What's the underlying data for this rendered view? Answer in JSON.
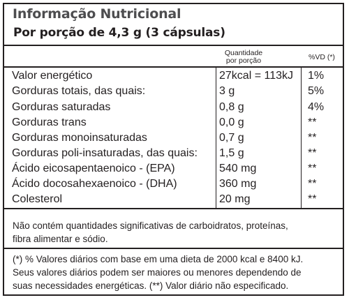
{
  "title": "Informação Nutricional",
  "subtitle": "Por porção de 4,3 g (3 cápsulas)",
  "columns": {
    "qty_line1": "Quantidade",
    "qty_line2": "por porção",
    "vd": "%VD (*)"
  },
  "rows": [
    {
      "name": "Valor energético",
      "qty": "27kcal = 113kJ",
      "vd": "1%"
    },
    {
      "name": "Gorduras totais, das quais:",
      "qty": "3 g",
      "vd": "5%"
    },
    {
      "name": "Gorduras saturadas",
      "qty": "0,8 g",
      "vd": "4%"
    },
    {
      "name": "Gorduras trans",
      "qty": "0,0 g",
      "vd": "**"
    },
    {
      "name": "Gorduras monoinsaturadas",
      "qty": "0,7 g",
      "vd": "**"
    },
    {
      "name": "Gorduras poli-insaturadas, das quais:",
      "qty": "1,5 g",
      "vd": "**"
    },
    {
      "name": "Ácido eicosapentaenoico - (EPA)",
      "qty": "540 mg",
      "vd": "**"
    },
    {
      "name": "Ácido docosahexaenoico - (DHA)",
      "qty": "360 mg",
      "vd": "**"
    },
    {
      "name": "Colesterol",
      "qty": "20 mg",
      "vd": "**"
    }
  ],
  "notes": {
    "ingredients_line1": "Não contém quantidades significativas de carboidratos, proteínas,",
    "ingredients_line2": "fibra alimentar e sódio.",
    "footnote_line1": "(*) % Valores diários com base em uma dieta de 2000 kcal e 8400 kJ.",
    "footnote_line2": "Seus valores diários podem ser maiores ou menores dependendo de",
    "footnote_line3": "suas necessidades energéticas. (**) Valor diário não especificado."
  }
}
